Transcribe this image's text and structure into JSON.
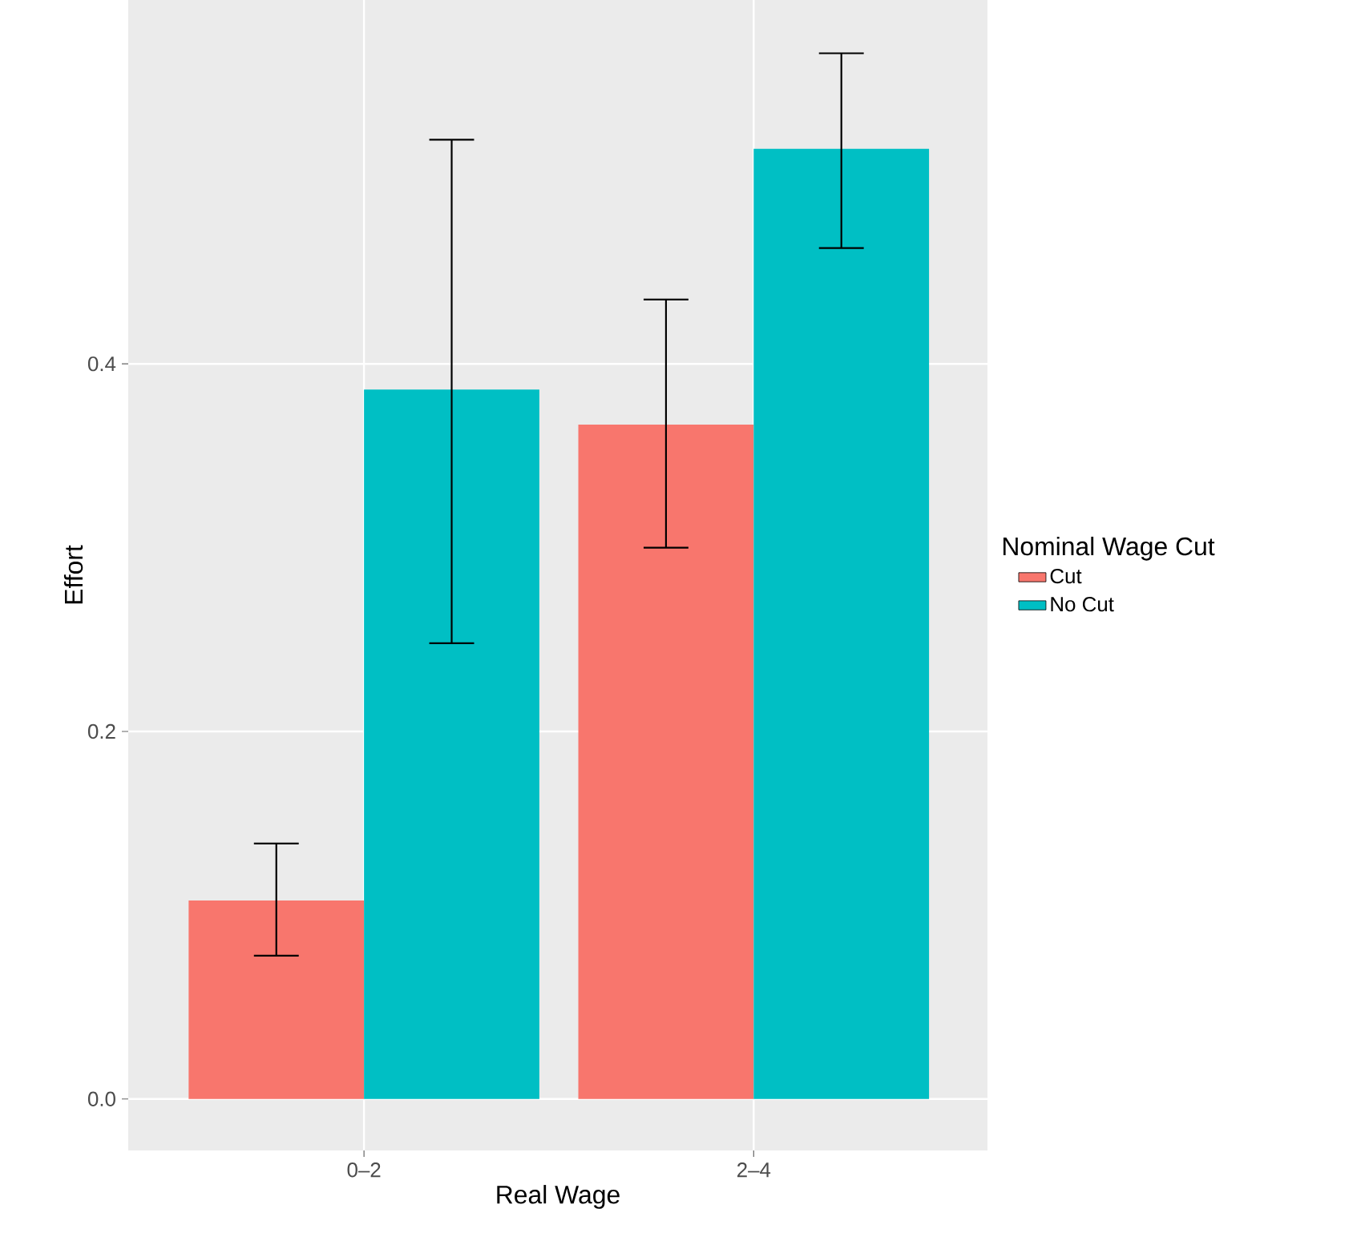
{
  "chart_data": {
    "type": "bar",
    "xlabel": "Real Wage",
    "ylabel": "Effort",
    "legend_title": "Nominal Wage Cut",
    "categories": [
      "0–2",
      "2–4"
    ],
    "series": [
      {
        "name": "Cut",
        "color": "#f8766d",
        "values": [
          0.108,
          0.367
        ],
        "errors": [
          [
            0.078,
            0.139
          ],
          [
            0.3,
            0.435
          ]
        ]
      },
      {
        "name": "No Cut",
        "color": "#00bfc4",
        "values": [
          0.386,
          0.517
        ],
        "errors": [
          [
            0.248,
            0.522
          ],
          [
            0.463,
            0.569
          ]
        ]
      }
    ],
    "ylim": [
      -0.028,
      0.598
    ],
    "yticks": [
      {
        "value": 0,
        "label": "0.0"
      },
      {
        "value": 0.2,
        "label": "0.2"
      },
      {
        "value": 0.4,
        "label": "0.4"
      }
    ],
    "grid": true,
    "legend": "right"
  }
}
